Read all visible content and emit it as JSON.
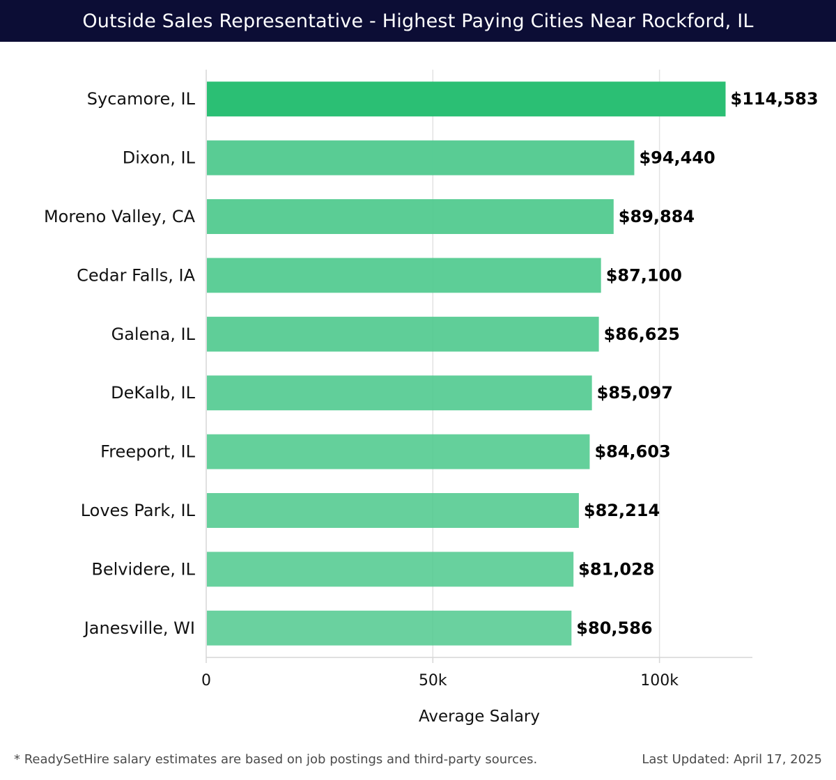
{
  "header": {
    "title": "Outside Sales Representative - Highest Paying Cities Near Rockford, IL"
  },
  "footer": {
    "note": "* ReadySetHire salary estimates are based on job postings and third-party sources.",
    "updated": "Last Updated: April 17, 2025"
  },
  "colors": {
    "title_bg": "#0c0d35",
    "top_bar": "#2bbf74",
    "bar": "#4ec98d",
    "grid": "#e2e2e2"
  },
  "chart_data": {
    "type": "bar",
    "orientation": "horizontal",
    "title": "Outside Sales Representative - Highest Paying Cities Near Rockford, IL",
    "xlabel": "Average Salary",
    "ylabel": "",
    "xlim": [
      0,
      120500
    ],
    "xticks": [
      0,
      50000,
      100000
    ],
    "xtick_labels": [
      "0",
      "50k",
      "100k"
    ],
    "grid": true,
    "categories": [
      "Sycamore, IL",
      "Dixon, IL",
      "Moreno Valley, CA",
      "Cedar Falls, IA",
      "Galena, IL",
      "DeKalb, IL",
      "Freeport, IL",
      "Loves Park, IL",
      "Belvidere, IL",
      "Janesville, WI"
    ],
    "values": [
      114583,
      94440,
      89884,
      87100,
      86625,
      85097,
      84603,
      82214,
      81028,
      80586
    ],
    "value_labels": [
      "$114,583",
      "$94,440",
      "$89,884",
      "$87,100",
      "$86,625",
      "$85,097",
      "$84,603",
      "$82,214",
      "$81,028",
      "$80,586"
    ]
  }
}
